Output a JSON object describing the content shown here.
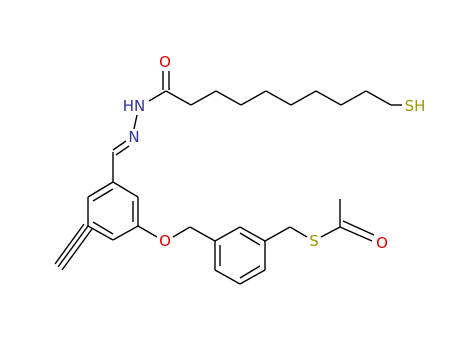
{
  "atoms": [
    {
      "label": "O"
    },
    {
      "label": "HN"
    },
    {
      "label": "N"
    },
    {
      "label": "SH"
    },
    {
      "label": "O"
    },
    {
      "label": "S"
    },
    {
      "label": "O"
    }
  ]
}
